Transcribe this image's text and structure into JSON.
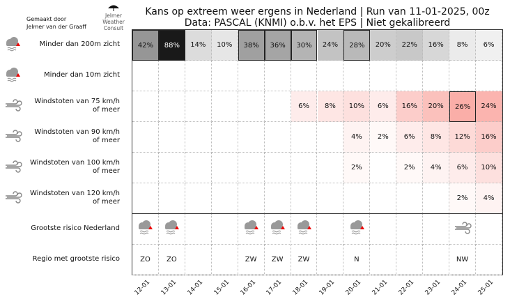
{
  "title_line1": "Kans op extreem weer ergens in Nederland | Run van 11-01-2025, 00z",
  "title_line2": "Data: PASCAL (KNMI) o.b.v. het EPS | Niet gekalibreerd",
  "credit_line1": "Gemaakt door",
  "credit_line2": "Jelmer van der Graaff",
  "logo_text": [
    "Jelmer",
    "Weather",
    "Consult"
  ],
  "colors": {
    "visibility": "#000000",
    "wind": "#e8604c",
    "border": "#222222"
  },
  "chart_data": {
    "type": "heatmap",
    "x": [
      "12-01",
      "13-01",
      "14-01",
      "15-01",
      "16-01",
      "17-01",
      "18-01",
      "19-01",
      "20-01",
      "21-01",
      "22-01",
      "23-01",
      "24-01",
      "25-01"
    ],
    "rows": [
      {
        "label": "Minder dan 200m zicht",
        "icon": "fog-icon",
        "kind": "visibility",
        "values": [
          42,
          88,
          14,
          10,
          38,
          36,
          30,
          24,
          28,
          20,
          22,
          16,
          8,
          6
        ],
        "highlight": [
          0,
          1,
          4,
          5,
          6,
          8
        ]
      },
      {
        "label": "Minder dan 10m zicht",
        "icon": "fog-icon",
        "kind": "visibility",
        "values": [
          null,
          null,
          null,
          null,
          null,
          null,
          null,
          null,
          null,
          null,
          null,
          null,
          null,
          null
        ],
        "highlight": []
      },
      {
        "label": "Windstoten van 75 km/h\nof meer",
        "icon": "wind-icon",
        "kind": "wind",
        "values": [
          null,
          null,
          null,
          null,
          null,
          null,
          6,
          8,
          10,
          6,
          16,
          20,
          26,
          24
        ],
        "highlight": [
          12
        ]
      },
      {
        "label": "Windstoten van 90 km/h\nof meer",
        "icon": "wind-icon",
        "kind": "wind",
        "values": [
          null,
          null,
          null,
          null,
          null,
          null,
          null,
          null,
          4,
          2,
          6,
          8,
          12,
          16
        ],
        "highlight": []
      },
      {
        "label": "Windstoten van 100 km/h\nof meer",
        "icon": "wind-icon",
        "kind": "wind",
        "values": [
          null,
          null,
          null,
          null,
          null,
          null,
          null,
          null,
          2,
          null,
          2,
          4,
          6,
          10
        ],
        "highlight": []
      },
      {
        "label": "Windstoten van 120 km/h\nof meer",
        "icon": "wind-icon",
        "kind": "wind",
        "values": [
          null,
          null,
          null,
          null,
          null,
          null,
          null,
          null,
          null,
          null,
          null,
          null,
          2,
          4
        ],
        "highlight": []
      }
    ],
    "risk_row": {
      "label": "Grootste risico Nederland",
      "icons": [
        "fog",
        "fog",
        null,
        null,
        "fog",
        "fog",
        "fog",
        null,
        "fog",
        null,
        null,
        null,
        "wind",
        null
      ]
    },
    "region_row": {
      "label": "Regio met grootste risico",
      "values": [
        "ZO",
        "ZO",
        "",
        "",
        "ZW",
        "ZW",
        "ZW",
        "",
        "N",
        "",
        "",
        "",
        "NW",
        ""
      ]
    },
    "value_suffix": "%"
  }
}
